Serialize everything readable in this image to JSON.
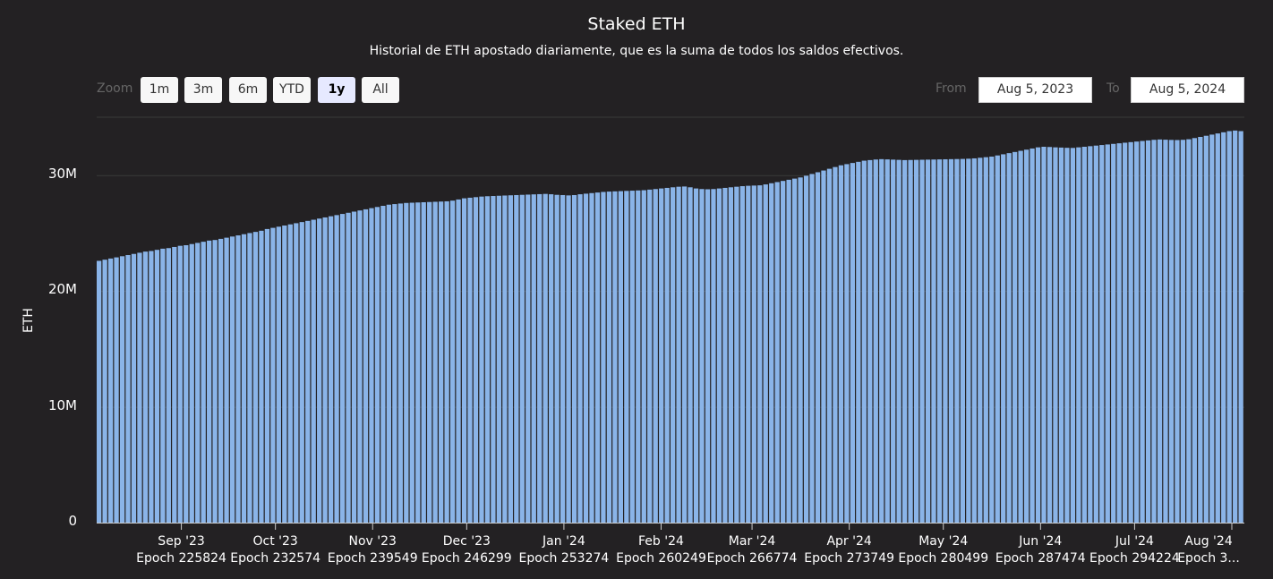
{
  "title": "Staked ETH",
  "subtitle": "Historial de ETH apostado diariamente, que es la suma de todos los saldos efectivos.",
  "range_selector": {
    "zoom_label": "Zoom",
    "buttons": [
      "1m",
      "3m",
      "6m",
      "YTD",
      "1y",
      "All"
    ],
    "selected": "1y",
    "from_label": "From",
    "from_value": "Aug 5, 2023",
    "to_label": "To",
    "to_value": "Aug 5, 2024"
  },
  "colors": {
    "background": "#232123",
    "bar": "#8ab4e8",
    "gridline": "#3a3a3a",
    "text": "#ffffff"
  },
  "chart_data": {
    "type": "bar",
    "ylabel": "ETH",
    "ylim": [
      0,
      35000000
    ],
    "y_ticks": [
      "0",
      "10M",
      "20M",
      "30M"
    ],
    "x_tick_labels": [
      {
        "month": "Sep '23",
        "epoch": "Epoch 225824"
      },
      {
        "month": "Oct '23",
        "epoch": "Epoch 232574"
      },
      {
        "month": "Nov '23",
        "epoch": "Epoch 239549"
      },
      {
        "month": "Dec '23",
        "epoch": "Epoch 246299"
      },
      {
        "month": "Jan '24",
        "epoch": "Epoch 253274"
      },
      {
        "month": "Feb '24",
        "epoch": "Epoch 260249"
      },
      {
        "month": "Mar '24",
        "epoch": "Epoch 266774"
      },
      {
        "month": "Apr '24",
        "epoch": "Epoch 273749"
      },
      {
        "month": "May '24",
        "epoch": "Epoch 280499"
      },
      {
        "month": "Jun '24",
        "epoch": "Epoch 287474"
      },
      {
        "month": "Jul '24",
        "epoch": "Epoch 294224"
      },
      {
        "month": "Aug '24",
        "epoch": "Epoch 3..."
      }
    ],
    "x_tick_days": [
      27,
      57,
      88,
      118,
      149,
      180,
      209,
      240,
      270,
      301,
      331,
      362
    ],
    "grid": true,
    "series": [
      {
        "values": [
          22600000,
          22700000,
          22800000,
          22900000,
          23000000,
          23100000,
          23200000,
          23300000,
          23400000,
          23450000,
          23550000,
          23650000,
          23700000,
          23800000,
          23900000,
          23950000,
          24050000,
          24150000,
          24250000,
          24350000,
          24400000,
          24500000,
          24600000,
          24700000,
          24800000,
          24900000,
          25000000,
          25100000,
          25200000,
          25350000,
          25450000,
          25550000,
          25650000,
          25750000,
          25850000,
          25950000,
          26050000,
          26150000,
          26250000,
          26350000,
          26450000,
          26550000,
          26650000,
          26750000,
          26850000,
          26950000,
          27050000,
          27150000,
          27250000,
          27350000,
          27450000,
          27500000,
          27550000,
          27600000,
          27620000,
          27640000,
          27660000,
          27680000,
          27700000,
          27720000,
          27740000,
          27800000,
          27900000,
          28000000,
          28050000,
          28100000,
          28150000,
          28180000,
          28200000,
          28220000,
          28240000,
          28260000,
          28280000,
          28300000,
          28320000,
          28340000,
          28360000,
          28380000,
          28350000,
          28300000,
          28280000,
          28250000,
          28280000,
          28350000,
          28400000,
          28450000,
          28500000,
          28550000,
          28580000,
          28600000,
          28620000,
          28640000,
          28660000,
          28680000,
          28700000,
          28750000,
          28800000,
          28850000,
          28900000,
          28950000,
          29000000,
          29020000,
          28950000,
          28850000,
          28800000,
          28780000,
          28800000,
          28850000,
          28900000,
          28950000,
          29000000,
          29050000,
          29080000,
          29100000,
          29120000,
          29200000,
          29300000,
          29400000,
          29500000,
          29600000,
          29700000,
          29800000,
          29950000,
          30100000,
          30250000,
          30400000,
          30550000,
          30700000,
          30850000,
          30950000,
          31050000,
          31150000,
          31250000,
          31300000,
          31350000,
          31380000,
          31360000,
          31340000,
          31320000,
          31300000,
          31310000,
          31320000,
          31330000,
          31340000,
          31350000,
          31360000,
          31370000,
          31380000,
          31390000,
          31400000,
          31420000,
          31450000,
          31500000,
          31550000,
          31600000,
          31700000,
          31800000,
          31900000,
          32000000,
          32100000,
          32200000,
          32300000,
          32400000,
          32450000,
          32430000,
          32400000,
          32380000,
          32360000,
          32350000,
          32400000,
          32450000,
          32500000,
          32550000,
          32600000,
          32650000,
          32700000,
          32750000,
          32800000,
          32850000,
          32900000,
          32950000,
          33000000,
          33050000,
          33080000,
          33060000,
          33040000,
          33030000,
          33050000,
          33100000,
          33200000,
          33300000,
          33400000,
          33500000,
          33600000,
          33700000,
          33800000,
          33850000,
          33800000
        ]
      }
    ]
  }
}
